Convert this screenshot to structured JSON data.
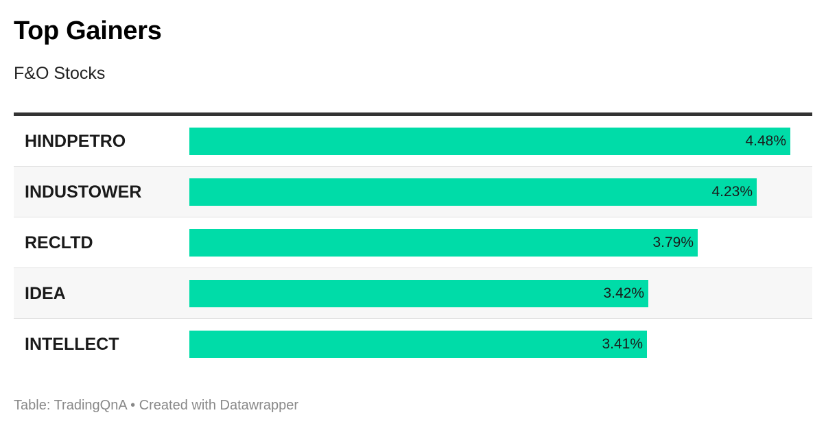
{
  "header": {
    "title": "Top Gainers",
    "subtitle": "F&O Stocks"
  },
  "footer": {
    "source_label": "Table: TradingQnA",
    "separator": " • ",
    "credit": "Created with Datawrapper"
  },
  "colors": {
    "bar": "#00dca8",
    "rule": "#333333",
    "alt_row": "#f7f7f7"
  },
  "chart_data": {
    "type": "bar",
    "orientation": "horizontal",
    "title": "Top Gainers",
    "subtitle": "F&O Stocks",
    "categories": [
      "HINDPETRO",
      "INDUSTOWER",
      "RECLTD",
      "IDEA",
      "INTELLECT"
    ],
    "values": [
      4.48,
      4.23,
      3.79,
      3.42,
      3.41
    ],
    "value_labels": [
      "4.48%",
      "4.23%",
      "3.79%",
      "3.42%",
      "3.41%"
    ],
    "unit": "%",
    "xlim": [
      0,
      4.48
    ],
    "grid": false,
    "legend": "none"
  }
}
